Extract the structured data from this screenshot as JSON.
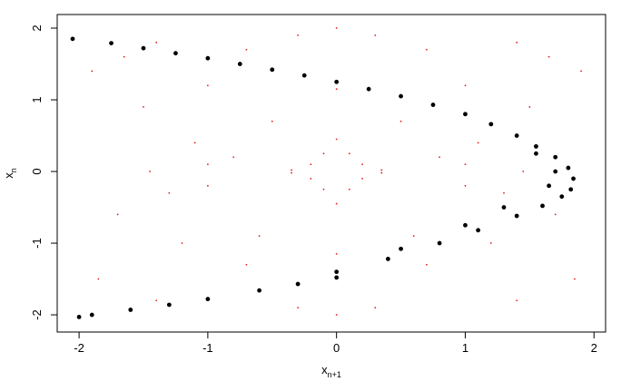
{
  "chart_data": {
    "type": "scatter",
    "xlabel": "x",
    "xlabel_sub": "n+1",
    "ylabel": "x",
    "ylabel_sub": "n",
    "xlim": [
      -2.17,
      2.09
    ],
    "ylim": [
      -2.24,
      2.19
    ],
    "xticks": [
      -2,
      -1,
      0,
      1,
      2
    ],
    "yticks": [
      -2,
      -1,
      0,
      1,
      2
    ],
    "series": [
      {
        "color": "#e41a1c",
        "size": 0.9,
        "x": [
          0.1,
          0.2,
          0.35,
          0.1,
          0.2,
          0.35,
          -0.1,
          -0.2,
          -0.35,
          -0.1,
          -0.2,
          -0.35,
          0.0,
          0.0,
          0.5,
          -0.5,
          0.8,
          -0.8,
          1.1,
          -1.1,
          1.3,
          -1.3,
          1.5,
          -1.5,
          1.7,
          -1.7,
          1.9,
          -1.9,
          0.6,
          -0.6,
          1.0,
          -1.0,
          1.2,
          -1.2,
          1.45,
          -1.45,
          1.65,
          -1.65,
          1.85,
          -1.85,
          0.3,
          -0.3,
          0.3,
          -0.3,
          0.7,
          -0.7,
          0.7,
          -0.7,
          1.4,
          -1.4,
          1.4,
          -1.4,
          1.0,
          -1.0,
          1.0,
          -1.0,
          0.0,
          0.0,
          0.0,
          0.0
        ],
        "y": [
          0.25,
          0.1,
          0.02,
          -0.25,
          -0.1,
          -0.02,
          0.25,
          0.1,
          0.02,
          -0.25,
          -0.1,
          -0.02,
          0.45,
          -0.45,
          0.7,
          0.7,
          0.2,
          0.2,
          0.4,
          0.4,
          -0.3,
          -0.3,
          0.9,
          0.9,
          -0.6,
          -0.6,
          1.4,
          1.4,
          -0.9,
          -0.9,
          1.2,
          1.2,
          -1.0,
          -1.0,
          0.0,
          0.0,
          1.6,
          1.6,
          -1.5,
          -1.5,
          1.9,
          1.9,
          -1.9,
          -1.9,
          -1.3,
          -1.3,
          1.7,
          1.7,
          1.8,
          1.8,
          -1.8,
          -1.8,
          0.1,
          0.1,
          -0.2,
          -0.2,
          1.15,
          -1.15,
          2.0,
          -2.0
        ]
      },
      {
        "color": "#000000",
        "size": 2.4,
        "x": [
          -2.05,
          -1.75,
          -1.5,
          -1.25,
          -1.0,
          -0.75,
          -0.5,
          -0.25,
          0.0,
          0.25,
          0.5,
          0.75,
          1.0,
          1.2,
          1.4,
          1.55,
          1.7,
          1.8,
          1.84,
          1.82,
          1.75,
          1.6,
          1.4,
          1.1,
          0.8,
          0.4,
          0.0,
          -0.3,
          -0.6,
          -1.0,
          -1.3,
          -1.6,
          -1.9,
          -2.0,
          1.7,
          1.65,
          1.55,
          1.3,
          1.0,
          0.5,
          0.0
        ],
        "y": [
          1.85,
          1.79,
          1.72,
          1.65,
          1.58,
          1.5,
          1.42,
          1.34,
          1.25,
          1.15,
          1.05,
          0.93,
          0.8,
          0.66,
          0.5,
          0.35,
          0.2,
          0.05,
          -0.1,
          -0.25,
          -0.35,
          -0.48,
          -0.62,
          -0.82,
          -1.0,
          -1.22,
          -1.48,
          -1.57,
          -1.66,
          -1.78,
          -1.86,
          -1.93,
          -2.0,
          -2.03,
          0.0,
          -0.2,
          0.25,
          -0.5,
          -0.75,
          -1.08,
          -1.4
        ]
      }
    ]
  }
}
